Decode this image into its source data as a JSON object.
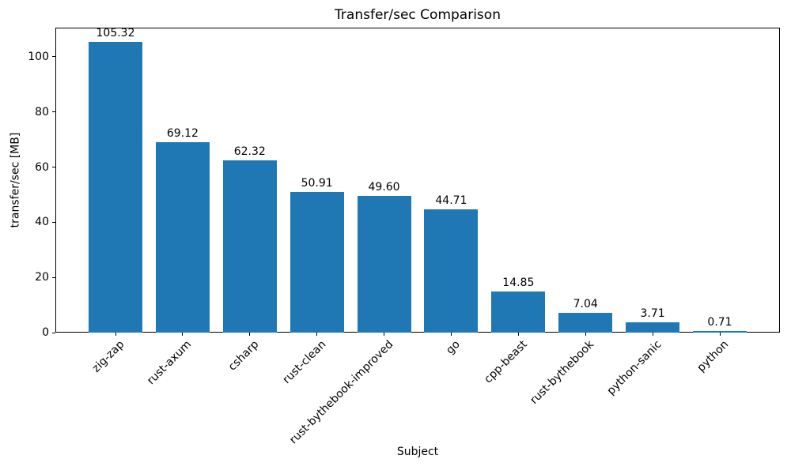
{
  "chart_data": {
    "type": "bar",
    "title": "Transfer/sec Comparison",
    "xlabel": "Subject",
    "ylabel": "transfer/sec [MB]",
    "categories": [
      "zig-zap",
      "rust-axum",
      "csharp",
      "rust-clean",
      "rust-bythebook-improved",
      "go",
      "cpp-beast",
      "rust-bythebook",
      "python-sanic",
      "python"
    ],
    "values": [
      105.32,
      69.12,
      62.32,
      50.91,
      49.6,
      44.71,
      14.85,
      7.04,
      3.71,
      0.71
    ],
    "value_labels": [
      "105.32",
      "69.12",
      "62.32",
      "50.91",
      "49.60",
      "44.71",
      "14.85",
      "7.04",
      "3.71",
      "0.71"
    ],
    "yticks": [
      0,
      20,
      40,
      60,
      80,
      100
    ],
    "ylim": [
      0,
      110.6
    ],
    "x_tick_rotation": 45,
    "bar_color": "#1f77b4",
    "background_color": "#ffffff",
    "axis_color": "#000000",
    "grid": false,
    "legend": false
  }
}
